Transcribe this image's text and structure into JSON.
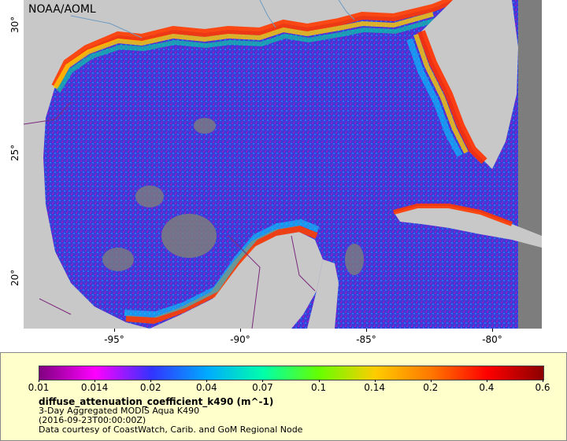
{
  "credit": "NOAA/AOML",
  "axes": {
    "y_ticks": [
      "30°",
      "25°",
      "20°"
    ],
    "x_ticks": [
      "-95°",
      "-90°",
      "-85°",
      "-80°"
    ]
  },
  "colorbar": {
    "labels": [
      "0.01",
      "0.014",
      "0.02",
      "0.04",
      "0.07",
      "0.1",
      "0.14",
      "0.2",
      "0.4",
      "0.6"
    ],
    "colors": [
      "#800080",
      "#ff00ff",
      "#3333ff",
      "#00aaff",
      "#00ffaa",
      "#66ff00",
      "#ffcc00",
      "#ff7700",
      "#ff0000",
      "#8b0000"
    ]
  },
  "legend": {
    "variable": "diffuse_attenuation_coefficient_k490 (m^-1)",
    "product": "3-Day Aggregated MODIS Aqua K490",
    "time": "(2016-09-23T00:00:00Z)",
    "source": "Data courtesy of CoastWatch, Carib. and GoM Regional Node"
  }
}
